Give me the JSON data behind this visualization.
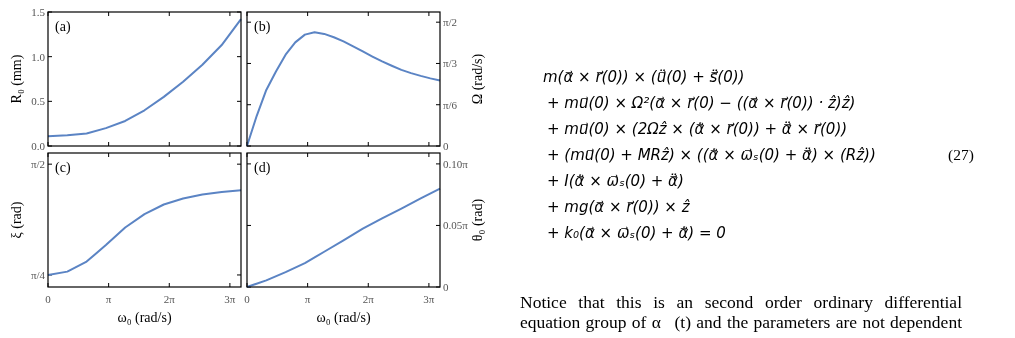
{
  "chart_data": [
    {
      "type": "line",
      "annotations": [
        "(a)"
      ],
      "ylabel": "R₀ (mm)",
      "ylim": [
        0,
        1.5
      ],
      "yticks": [
        {
          "value": 0,
          "label": "0.0"
        },
        {
          "value": 0.5,
          "label": "0.5"
        },
        {
          "value": 1,
          "label": "1.0"
        },
        {
          "value": 1.5,
          "label": "1.5"
        }
      ],
      "tick_labels": [
        "y"
      ],
      "categories": [
        null,
        null,
        null,
        null,
        null,
        null,
        null,
        null,
        null,
        null,
        null
      ],
      "series": [
        {
          "color": "#5b84c4",
          "values": [
            0.11,
            0.12,
            0.14,
            0.2,
            0.28,
            0.4,
            0.55,
            0.72,
            0.91,
            1.13,
            1.42
          ]
        }
      ]
    },
    {
      "type": "line",
      "annotations": [
        "(b)"
      ],
      "ylabel": "Ω (rad/s)",
      "ylim": [
        0,
        1.7
      ],
      "yticks": [
        {
          "value": 0,
          "label": "0"
        },
        {
          "value": 0.5236,
          "label": "π/6"
        },
        {
          "value": 1.0472,
          "label": "π/3"
        },
        {
          "value": 1.5708,
          "label": "π/2"
        }
      ],
      "tick_labels": [
        "y"
      ],
      "categories": [
        null,
        null,
        null,
        null,
        null,
        null,
        null,
        null,
        null,
        null,
        null,
        null,
        null,
        null,
        null,
        null,
        null,
        null,
        null,
        null,
        null
      ],
      "series": [
        {
          "color": "#5b84c4",
          "values": [
            0,
            0.38,
            0.711,
            0.945,
            1.158,
            1.315,
            1.413,
            1.443,
            1.422,
            1.38,
            1.328,
            1.265,
            1.2,
            1.135,
            1.073,
            1.018,
            0.966,
            0.925,
            0.89,
            0.858,
            0.83
          ]
        }
      ]
    },
    {
      "type": "line",
      "annotations": [
        "(c)"
      ],
      "ylabel": "ξ (rad)",
      "xlabel": "ω₀ (rad/s)",
      "xlim": [
        0,
        10
      ],
      "xticks": [
        {
          "value": 0,
          "label": "0"
        },
        {
          "value": 3.1416,
          "label": "π"
        },
        {
          "value": 6.2832,
          "label": "2π"
        },
        {
          "value": 9.4248,
          "label": "3π"
        }
      ],
      "ylim": [
        0.7,
        1.65
      ],
      "yticks": [
        {
          "value": 0.7854,
          "label": "π/4"
        },
        {
          "value": 1.5708,
          "label": "π/2"
        }
      ],
      "tick_labels": [
        "x",
        "y"
      ],
      "x": [
        0,
        1,
        2,
        3,
        4,
        5,
        6,
        7,
        8,
        9,
        10
      ],
      "series": [
        {
          "color": "#5b84c4",
          "values": [
            0.785,
            0.809,
            0.88,
            0.997,
            1.122,
            1.217,
            1.285,
            1.327,
            1.356,
            1.374,
            1.386
          ]
        }
      ]
    },
    {
      "type": "line",
      "annotations": [
        "(d)"
      ],
      "y2label": "θ₀ (rad)",
      "xlabel": "ω₀ (rad/s)",
      "xlim": [
        0,
        10
      ],
      "xticks": [
        {
          "value": 0,
          "label": "0"
        },
        {
          "value": 3.1416,
          "label": "π"
        },
        {
          "value": 6.2832,
          "label": "2π"
        },
        {
          "value": 9.4248,
          "label": "3π"
        }
      ],
      "y2lim": [
        0,
        0.342
      ],
      "y2ticks": [
        {
          "value": 0,
          "label": "0"
        },
        {
          "value": 0.1571,
          "label": "0.05π"
        },
        {
          "value": 0.3142,
          "label": "0.10π"
        }
      ],
      "tick_labels": [
        "x",
        "y2"
      ],
      "x": [
        0,
        1,
        2,
        3,
        4,
        5,
        6,
        7,
        8,
        9,
        10
      ],
      "series": [
        {
          "color": "#5b84c4",
          "axis": "y2",
          "values": [
            0,
            0.017,
            0.038,
            0.061,
            0.09,
            0.119,
            0.149,
            0.175,
            0.2,
            0.226,
            0.251
          ]
        }
      ]
    },
    {
      "type": "other",
      "annotations": [
        "m(α⃗ × r⃗(0)) × (u⃗̈(0) + s⃗̈(0))",
        "+ mu⃗(0) × Ω²(α⃗ × r⃗(0) − ((α⃗ × r⃗(0)) · ẑ)ẑ)",
        "+ mu⃗(0) × (2Ωẑ × (α⃗̇ × r⃗(0)) + α⃗̈ × r⃗(0))",
        "+ (mu⃗(0) + MRẑ) × ((α⃗̇ × ω⃗ₛ(0) + α⃗̈) × (Rẑ))",
        "+ I(α⃗̇ × ω⃗ₛ(0) + α⃗̈)",
        "+ mg(α⃗ × r⃗(0)) × ẑ",
        "+ k₀(α⃗ × ω⃗ₛ(0) + α⃗̇) = 0",
        "(27)",
        "Notice that this is an second order ordinary differential equation group of α⃗(t) and the parameters are not dependent"
      ]
    }
  ]
}
